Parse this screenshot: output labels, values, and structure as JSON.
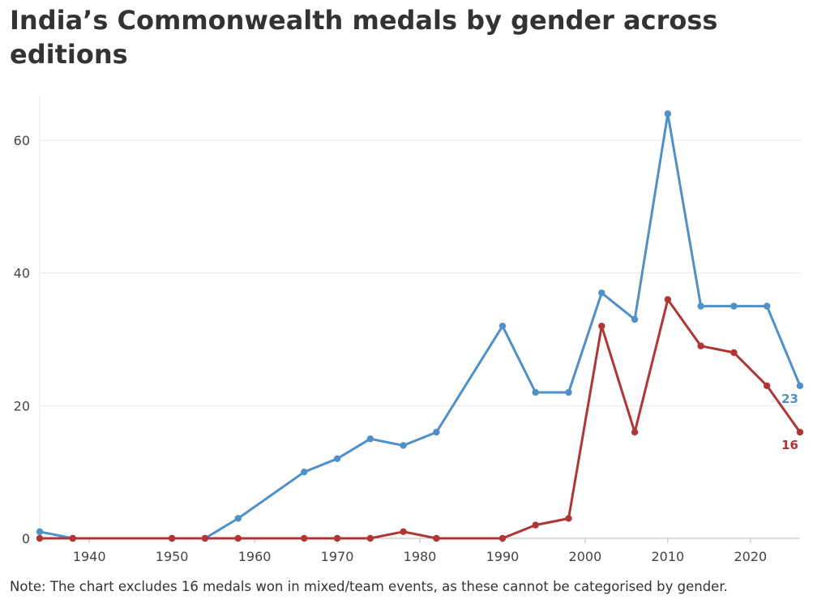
{
  "title": "India’s Commonwealth medals by gender across editions",
  "note": "Note: The chart excludes 16 medals won in mixed/team events, as these cannot be categorised by gender.",
  "colors": {
    "series_a": "#4f90c8",
    "series_b": "#b03535",
    "grid": "#e6e6e6",
    "axis": "#bdbdbd"
  },
  "chart_data": {
    "type": "line",
    "xlim": [
      1934,
      2026
    ],
    "ylim": [
      0,
      66
    ],
    "x_ticks": [
      1940,
      1950,
      1960,
      1970,
      1980,
      1990,
      2000,
      2010,
      2020
    ],
    "y_ticks": [
      0,
      20,
      40,
      60
    ],
    "grid": true,
    "series": [
      {
        "color": "#4f90c8",
        "end_label": "23",
        "points": [
          [
            1934,
            1
          ],
          [
            1938,
            0
          ],
          [
            1950,
            0
          ],
          [
            1954,
            0
          ],
          [
            1958,
            3
          ],
          [
            1966,
            10
          ],
          [
            1970,
            12
          ],
          [
            1974,
            15
          ],
          [
            1978,
            14
          ],
          [
            1982,
            16
          ],
          [
            1990,
            32
          ],
          [
            1994,
            22
          ],
          [
            1998,
            22
          ],
          [
            2002,
            37
          ],
          [
            2006,
            33
          ],
          [
            2010,
            64
          ],
          [
            2014,
            35
          ],
          [
            2018,
            35
          ],
          [
            2022,
            35
          ],
          [
            2026,
            23
          ]
        ]
      },
      {
        "color": "#b03535",
        "end_label": "16",
        "points": [
          [
            1934,
            0
          ],
          [
            1938,
            0
          ],
          [
            1950,
            0
          ],
          [
            1954,
            0
          ],
          [
            1958,
            0
          ],
          [
            1966,
            0
          ],
          [
            1970,
            0
          ],
          [
            1974,
            0
          ],
          [
            1978,
            1
          ],
          [
            1982,
            0
          ],
          [
            1990,
            0
          ],
          [
            1994,
            2
          ],
          [
            1998,
            3
          ],
          [
            2002,
            32
          ],
          [
            2006,
            16
          ],
          [
            2010,
            36
          ],
          [
            2014,
            29
          ],
          [
            2018,
            28
          ],
          [
            2022,
            23
          ],
          [
            2026,
            16
          ]
        ]
      }
    ]
  }
}
